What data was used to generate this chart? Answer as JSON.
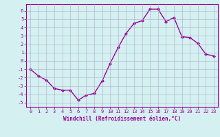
{
  "x": [
    0,
    1,
    2,
    3,
    4,
    5,
    6,
    7,
    8,
    9,
    10,
    11,
    12,
    13,
    14,
    15,
    16,
    17,
    18,
    19,
    20,
    21,
    22,
    23
  ],
  "y": [
    -1.0,
    -1.8,
    -2.3,
    -3.3,
    -3.5,
    -3.5,
    -4.7,
    -4.1,
    -3.9,
    -2.4,
    -0.3,
    1.6,
    3.3,
    4.5,
    4.8,
    6.2,
    6.2,
    4.7,
    5.2,
    2.9,
    2.8,
    2.1,
    0.8,
    0.6
  ],
  "line_color": "#990099",
  "marker": "D",
  "marker_size": 2.0,
  "bg_color": "#d4f0f0",
  "grid_color": "#aaaacc",
  "xlabel": "Windchill (Refroidissement éolien,°C)",
  "xlim": [
    -0.5,
    23.5
  ],
  "ylim": [
    -5.5,
    6.8
  ],
  "yticks": [
    -5,
    -4,
    -3,
    -2,
    -1,
    0,
    1,
    2,
    3,
    4,
    5,
    6
  ],
  "xticks": [
    0,
    1,
    2,
    3,
    4,
    5,
    6,
    7,
    8,
    9,
    10,
    11,
    12,
    13,
    14,
    15,
    16,
    17,
    18,
    19,
    20,
    21,
    22,
    23
  ],
  "tick_color": "#990099",
  "label_color": "#990099",
  "font_family": "monospace",
  "tick_fontsize": 5.0,
  "xlabel_fontsize": 5.5
}
